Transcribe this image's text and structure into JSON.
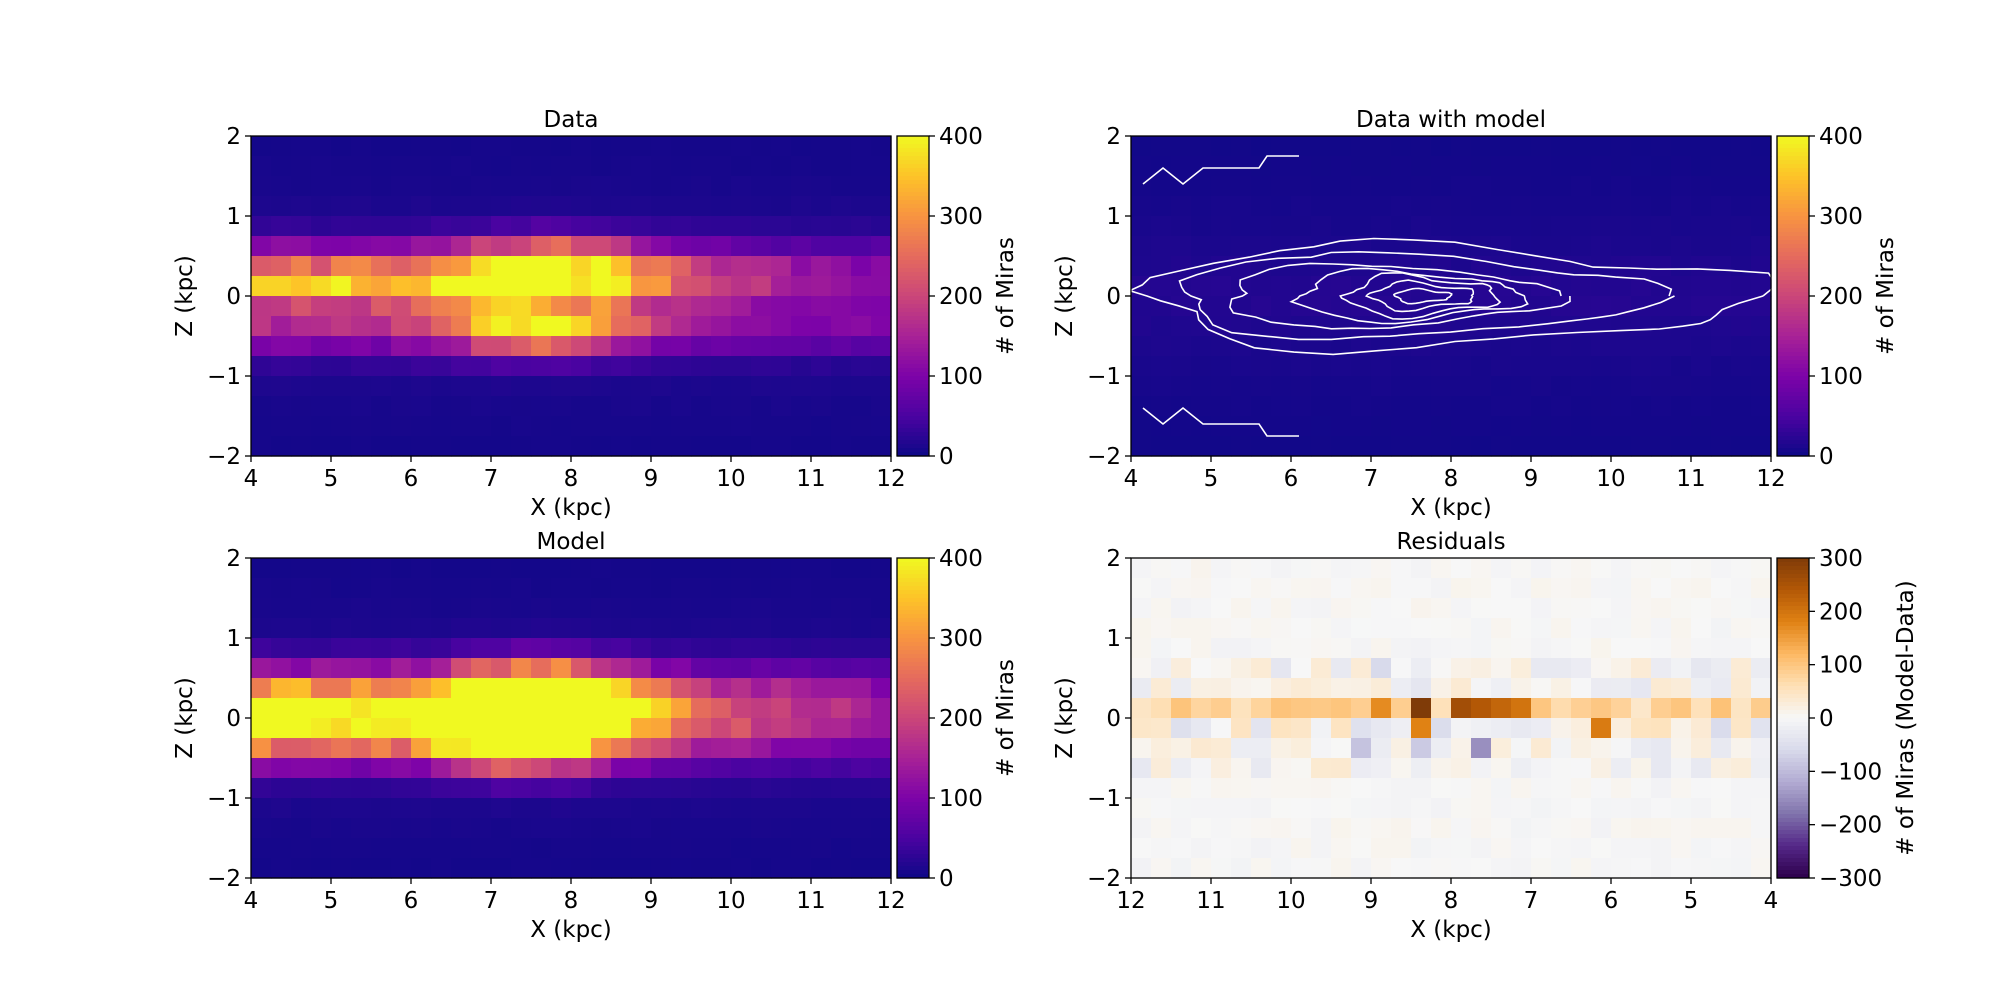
{
  "chart_data": [
    {
      "type": "heatmap",
      "title": "Data",
      "xlabel": "X (kpc)",
      "ylabel": "Z (kpc)",
      "xlim": [
        4,
        12
      ],
      "ylim": [
        -2,
        2
      ],
      "xticks": [
        "4",
        "5",
        "6",
        "7",
        "8",
        "9",
        "10",
        "11",
        "12"
      ],
      "yticks": [
        "−2",
        "−1",
        "0",
        "1",
        "2"
      ],
      "colorbar": {
        "label": "# of Miras",
        "min": 0,
        "max": 400,
        "ticks": [
          "0",
          "100",
          "200",
          "300",
          "400"
        ],
        "cmap": "plasma"
      },
      "grid_bins": {
        "x": 32,
        "z": 16
      },
      "bands": [
        {
          "z": 0.375,
          "width": 0.33,
          "peak": 390,
          "center_x": 7.7,
          "spread_x": 1.3,
          "left_level": 170,
          "right_level": 90
        },
        {
          "z": -0.375,
          "width": 0.33,
          "peak": 400,
          "center_x": 7.6,
          "spread_x": 1.2,
          "left_level": 160,
          "right_level": 100
        },
        {
          "z": 0.125,
          "width": 0.25,
          "peak": 250,
          "center_x": 5.5,
          "spread_x": 2.5,
          "left_level": 260,
          "right_level": 60
        }
      ],
      "background_level": 30
    },
    {
      "type": "heatmap",
      "title": "Data with model",
      "xlabel": "X (kpc)",
      "ylabel": "Z (kpc)",
      "xlim": [
        4,
        12
      ],
      "ylim": [
        -2,
        2
      ],
      "xticks": [
        "4",
        "5",
        "6",
        "7",
        "8",
        "9",
        "10",
        "11",
        "12"
      ],
      "yticks": [
        "−2",
        "−1",
        "0",
        "1",
        "2"
      ],
      "colorbar": {
        "label": "# of Miras",
        "min": 0,
        "max": 400,
        "ticks": [
          "0",
          "100",
          "200",
          "300",
          "400"
        ],
        "cmap": "plasma"
      },
      "overlay": "model contours (white)",
      "contour_levels": [
        20,
        60,
        120,
        180,
        240,
        300,
        350
      ]
    },
    {
      "type": "heatmap",
      "title": "Model",
      "xlabel": "X (kpc)",
      "ylabel": "Z (kpc)",
      "xlim": [
        4,
        12
      ],
      "ylim": [
        -2,
        2
      ],
      "xticks": [
        "4",
        "5",
        "6",
        "7",
        "8",
        "9",
        "10",
        "11",
        "12"
      ],
      "yticks": [
        "−2",
        "−1",
        "0",
        "1",
        "2"
      ],
      "colorbar": {
        "label": "# of Miras",
        "min": 0,
        "max": 400,
        "ticks": [
          "0",
          "100",
          "200",
          "300",
          "400"
        ],
        "cmap": "plasma"
      },
      "bands": [
        {
          "z": 0.375,
          "width": 0.35,
          "peak": 400,
          "center_x": 7.6,
          "spread_x": 1.1,
          "left_level": 180,
          "right_level": 80
        },
        {
          "z": 0.125,
          "width": 0.3,
          "peak": 400,
          "center_x": 7.5,
          "spread_x": 1.2,
          "left_level": 270,
          "right_level": 70
        },
        {
          "z": -0.125,
          "width": 0.3,
          "peak": 380,
          "center_x": 7.4,
          "spread_x": 1.2,
          "left_level": 220,
          "right_level": 60
        },
        {
          "z": -0.375,
          "width": 0.33,
          "peak": 360,
          "center_x": 7.4,
          "spread_x": 1.0,
          "left_level": 150,
          "right_level": 60
        }
      ],
      "background_level": 30
    },
    {
      "type": "heatmap",
      "title": "Residuals",
      "xlabel": "X (kpc)",
      "ylabel": "Z (kpc)",
      "xlim": [
        12,
        4
      ],
      "ylim": [
        -2,
        2
      ],
      "xticks": [
        "12",
        "11",
        "10",
        "9",
        "8",
        "7",
        "6",
        "5",
        "4"
      ],
      "yticks": [
        "−2",
        "−1",
        "0",
        "1",
        "2"
      ],
      "colorbar": {
        "label": "# of Miras (Model-Data)",
        "min": -300,
        "max": 300,
        "ticks": [
          "−300",
          "−200",
          "−100",
          "0",
          "100",
          "200",
          "300"
        ],
        "cmap": "PuOr_r"
      },
      "highlights": [
        {
          "x": 8.375,
          "z": 0.125,
          "value": 300
        },
        {
          "x": 7.875,
          "z": 0.125,
          "value": 260
        },
        {
          "x": 7.625,
          "z": 0.125,
          "value": 240
        },
        {
          "x": 7.375,
          "z": 0.125,
          "value": 220
        },
        {
          "x": 7.125,
          "z": 0.125,
          "value": 200
        },
        {
          "x": 8.875,
          "z": 0.125,
          "value": 170
        },
        {
          "x": 8.375,
          "z": -0.125,
          "value": 180
        },
        {
          "x": 6.125,
          "z": -0.125,
          "value": 190
        },
        {
          "x": 7.625,
          "z": -0.375,
          "value": -150
        },
        {
          "x": 9.125,
          "z": -0.375,
          "value": -90
        },
        {
          "x": 8.375,
          "z": -0.375,
          "value": -80
        },
        {
          "x": 8.875,
          "z": 0.625,
          "value": -60
        }
      ]
    }
  ]
}
